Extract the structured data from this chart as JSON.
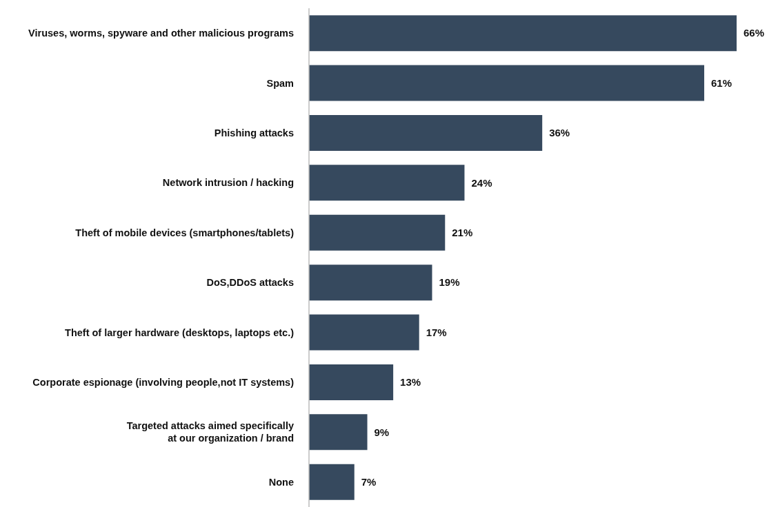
{
  "chart_data": {
    "type": "bar",
    "orientation": "horizontal",
    "categories": [
      "Viruses, worms, spyware and other malicious programs",
      "Spam",
      "Phishing attacks",
      "Network intrusion / hacking",
      "Theft of mobile devices (smartphones/tablets)",
      "DoS,DDoS attacks",
      "Theft of larger hardware (desktops, laptops etc.)",
      "Corporate espionage (involving people,not IT systems)",
      "Targeted attacks aimed specifically\nat our organization / brand",
      "None"
    ],
    "values": [
      66,
      61,
      36,
      24,
      21,
      19,
      17,
      13,
      9,
      7
    ],
    "value_labels": [
      "66%",
      "61%",
      "36%",
      "24%",
      "21%",
      "19%",
      "17%",
      "13%",
      "9%",
      "7%"
    ],
    "color": "#36495e",
    "grid": false,
    "legend": false
  }
}
